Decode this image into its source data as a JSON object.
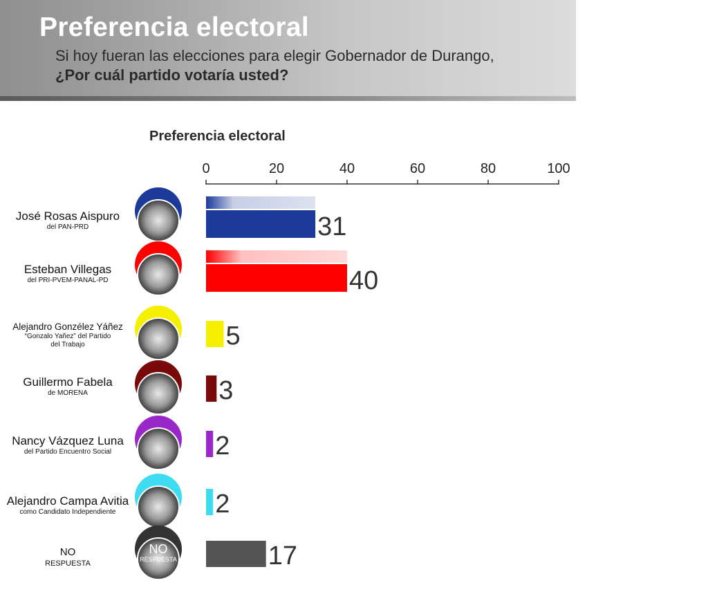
{
  "header": {
    "title": "Preferencia electoral",
    "question_line1": "Si hoy fueran las elecciones para elegir Gobernador de Durango,",
    "question_line2": "¿Por cuál partido votaría usted?"
  },
  "chart_data": {
    "type": "bar",
    "orientation": "horizontal",
    "title": "Preferencia electoral",
    "xlim": [
      0,
      100
    ],
    "x_ticks": [
      0,
      20,
      40,
      60,
      80,
      100
    ],
    "categories": [
      "José Rosas Aispuro",
      "Esteban Villegas",
      "Alejandro Gonzélez Yáñez",
      "Guillermo Fabela",
      "Nancy Vázquez Luna",
      "Alejandro Campa Avitia",
      "NO RESPUESTA"
    ],
    "values": [
      31,
      40,
      5,
      3,
      2,
      2,
      17
    ],
    "value_labels": [
      "31",
      "40",
      "5",
      "3",
      "2",
      "2",
      "17"
    ],
    "colors": [
      "#1c3a9a",
      "#ff0000",
      "#f5f000",
      "#7a0a0a",
      "#9a28c8",
      "#3ddcf0",
      "#555555"
    ],
    "grid": false,
    "legend": "none"
  },
  "candidates": [
    {
      "name": "José Rosas Aispuro",
      "party": "del PAN-PRD",
      "avatar_color": "#1c3a9a",
      "avatar_text": ""
    },
    {
      "name": "Esteban Villegas",
      "party": "del PRI-PVEM-PANAL-PD",
      "avatar_color": "#ff0000",
      "avatar_text": ""
    },
    {
      "name": "Alejandro Gonzélez Yáñez",
      "party_line1": "“Gonzalo Yañez” del Partido",
      "party_line2": "del Trabajo",
      "avatar_color": "#f5f000",
      "avatar_text": ""
    },
    {
      "name": "Guillermo Fabela",
      "party": "de MORENA",
      "avatar_color": "#7a0a0a",
      "avatar_text": ""
    },
    {
      "name": "Nancy Vázquez Luna",
      "party": "del Partido Encuentro Social",
      "avatar_color": "#9a28c8",
      "avatar_text": ""
    },
    {
      "name": "Alejandro Campa Avitia",
      "party": "como Candidato Independiente",
      "avatar_color": "#3ddcf0",
      "avatar_text": ""
    },
    {
      "name": "NO",
      "party": "RESPUESTA",
      "avatar_color": "#333333",
      "avatar_text_1": "NO",
      "avatar_text_2": "RESPUESTA"
    }
  ]
}
